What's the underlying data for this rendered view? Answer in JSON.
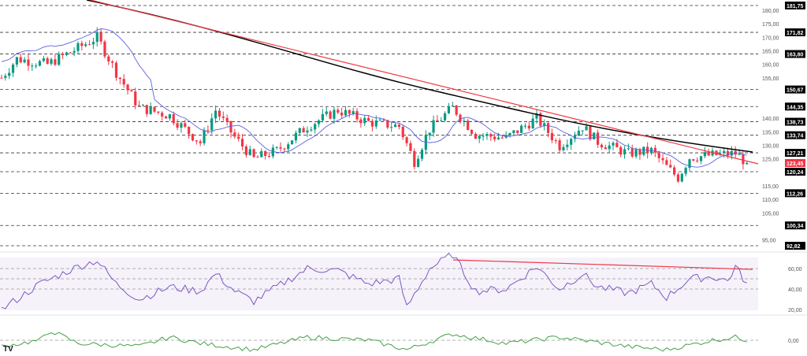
{
  "chart_data": {
    "type": "candlestick",
    "price_axis": {
      "min": 92.82,
      "max": 181.75,
      "ticks": [
        "180,00",
        "175,00",
        "170,00",
        "165,00",
        "160,00",
        "155,00",
        "140,00",
        "135,00",
        "130,00",
        "125,00",
        "115,00",
        "110,00",
        "105,00",
        "95,00"
      ]
    },
    "levels": [
      "181,75",
      "171,82",
      "163,80",
      "150,67",
      "144,35",
      "138,73",
      "133,74",
      "127,21",
      "120,24",
      "112,26",
      "100,34",
      "92,82"
    ],
    "level_values": [
      181.75,
      171.82,
      163.8,
      150.67,
      144.35,
      138.73,
      133.74,
      127.21,
      120.24,
      112.26,
      100.34,
      92.82
    ],
    "last_price": {
      "label": "123,45",
      "value": 123.45,
      "color": "#f23645"
    },
    "price_path": [
      [
        0,
        155
      ],
      [
        4,
        162
      ],
      [
        12,
        160
      ],
      [
        20,
        166
      ],
      [
        25,
        170
      ],
      [
        30,
        157
      ],
      [
        36,
        144
      ],
      [
        44,
        141
      ],
      [
        52,
        131
      ],
      [
        56,
        143
      ],
      [
        61,
        133
      ],
      [
        66,
        125
      ],
      [
        72,
        128
      ],
      [
        80,
        137
      ],
      [
        88,
        143
      ],
      [
        96,
        138.6
      ],
      [
        104,
        137
      ],
      [
        108,
        124
      ],
      [
        112,
        136
      ],
      [
        118,
        144
      ],
      [
        124,
        134
      ],
      [
        132,
        132.7
      ],
      [
        140,
        140
      ],
      [
        146,
        129.8
      ],
      [
        152,
        137
      ],
      [
        156,
        131.3
      ],
      [
        164,
        127
      ],
      [
        170,
        128
      ],
      [
        174,
        122
      ],
      [
        177,
        118
      ],
      [
        180,
        125.5
      ],
      [
        186,
        126.4
      ],
      [
        192,
        127
      ],
      [
        195,
        123.45
      ]
    ],
    "rsi": {
      "axis_ticks": [
        "60,00",
        "40,00",
        "20,00"
      ],
      "path": [
        [
          0,
          20
        ],
        [
          10,
          45
        ],
        [
          20,
          62
        ],
        [
          25,
          68
        ],
        [
          30,
          45
        ],
        [
          36,
          30
        ],
        [
          44,
          42
        ],
        [
          52,
          38
        ],
        [
          56,
          55
        ],
        [
          61,
          38
        ],
        [
          66,
          28
        ],
        [
          72,
          42
        ],
        [
          80,
          60
        ],
        [
          88,
          58
        ],
        [
          96,
          45
        ],
        [
          104,
          50
        ],
        [
          106,
          22
        ],
        [
          108,
          35
        ],
        [
          112,
          60
        ],
        [
          118,
          74
        ],
        [
          124,
          38
        ],
        [
          132,
          40
        ],
        [
          140,
          62
        ],
        [
          146,
          40
        ],
        [
          152,
          55
        ],
        [
          156,
          42
        ],
        [
          164,
          36
        ],
        [
          170,
          45
        ],
        [
          174,
          32
        ],
        [
          180,
          50
        ],
        [
          186,
          52
        ],
        [
          190,
          48
        ],
        [
          192,
          62
        ],
        [
          195,
          45
        ]
      ]
    },
    "oscillator": {
      "axis_tick": "0,00",
      "path": [
        [
          0,
          -2
        ],
        [
          10,
          0
        ],
        [
          13,
          3
        ],
        [
          20,
          -1
        ],
        [
          36,
          -2
        ],
        [
          44,
          1
        ],
        [
          52,
          -1
        ],
        [
          66,
          -3
        ],
        [
          80,
          1
        ],
        [
          96,
          0
        ],
        [
          106,
          -3
        ],
        [
          118,
          2
        ],
        [
          132,
          -1
        ],
        [
          146,
          1
        ],
        [
          164,
          -2
        ],
        [
          174,
          -3
        ],
        [
          186,
          0
        ],
        [
          192,
          1
        ],
        [
          195,
          0
        ]
      ]
    },
    "logo": "TV",
    "colors": {
      "up": "#089981",
      "down": "#f23645",
      "ma_fast": "#5b5fe0",
      "ma_slow": "#000000",
      "trend": "#f23645",
      "rsi": "#7e57c2",
      "osc": "#43a047"
    }
  }
}
